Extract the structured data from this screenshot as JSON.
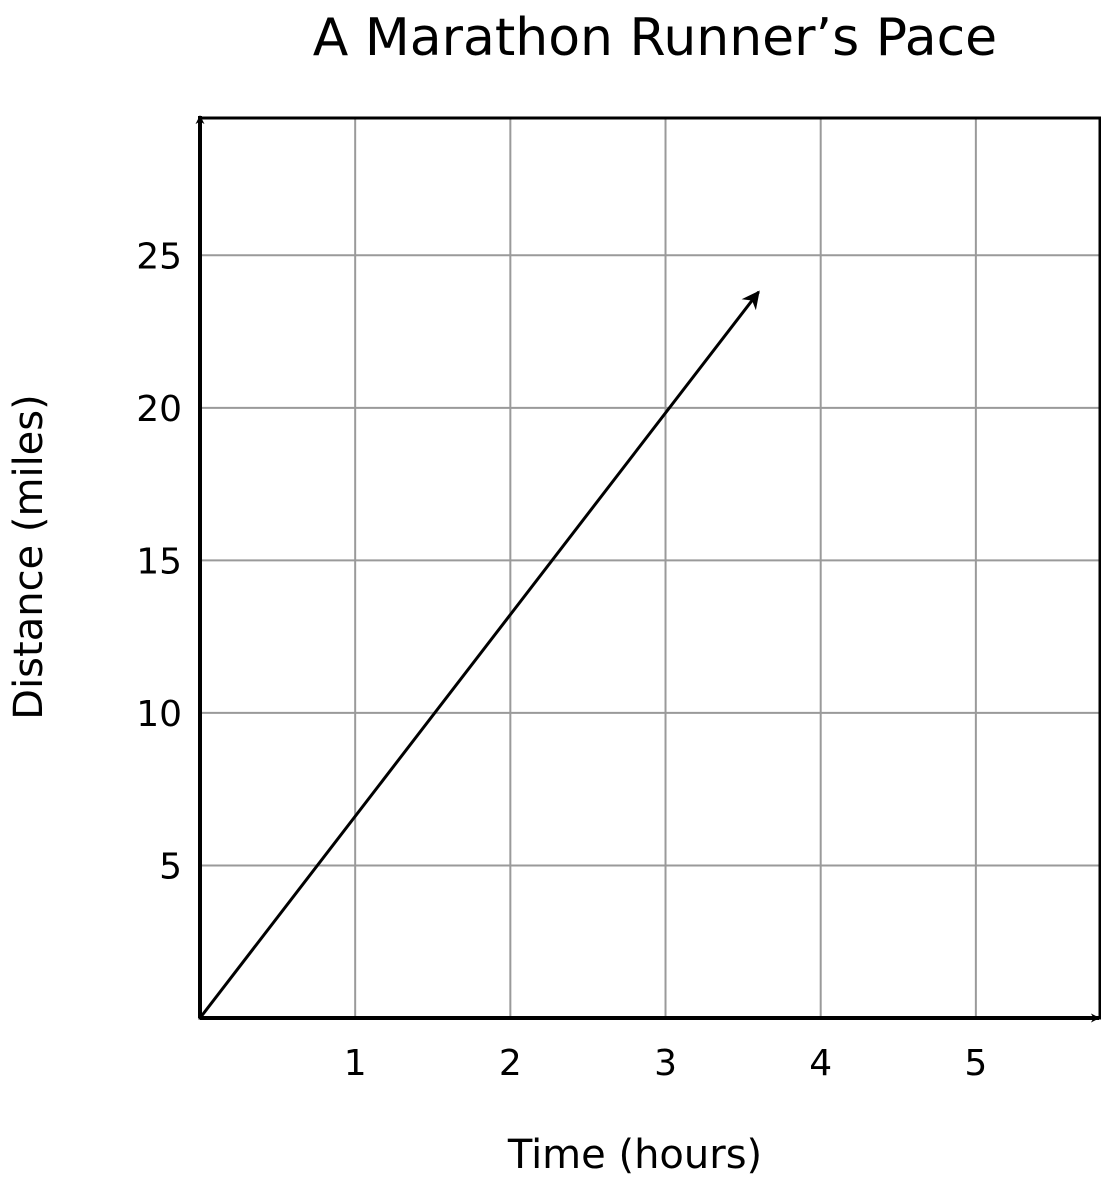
{
  "chart_data": {
    "type": "line",
    "title": "A Marathon Runner’s Pace",
    "xlabel": "Time (hours)",
    "ylabel": "Distance (miles)",
    "xlim": [
      0,
      5.8
    ],
    "ylim": [
      0,
      29.5
    ],
    "x_ticks": [
      1,
      2,
      3,
      4,
      5
    ],
    "y_ticks": [
      5,
      10,
      15,
      20,
      25
    ],
    "x_tick_labels": [
      "1",
      "2",
      "3",
      "4",
      "5"
    ],
    "y_tick_labels": [
      "5",
      "10",
      "15",
      "20",
      "25"
    ],
    "grid": true,
    "series": [
      {
        "x": [
          0,
          3.6
        ],
        "y": [
          0,
          23.8
        ],
        "end_arrow": true
      }
    ]
  },
  "colors": {
    "grid": "#9a9a9a",
    "axis": "#000000",
    "line": "#000000"
  }
}
